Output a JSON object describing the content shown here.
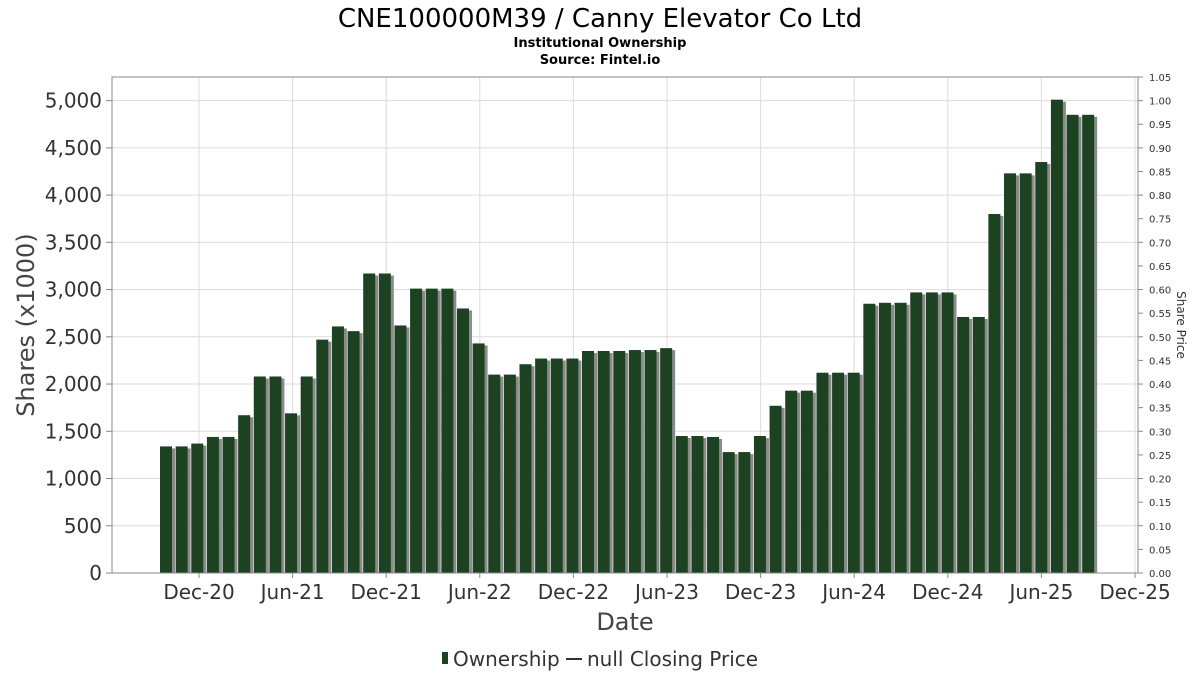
{
  "chart_data": {
    "type": "bar",
    "title": "CNE100000M39 / Canny Elevator Co Ltd",
    "subtitle": "Institutional Ownership",
    "source": "Source: Fintel.io",
    "xlabel": "Date",
    "ylabel": "Shares (x1000)",
    "y2label": "Share Price",
    "ylim": [
      0,
      5250
    ],
    "y2lim": [
      0,
      1.05
    ],
    "yticks": [
      "0",
      "500",
      "1,000",
      "1,500",
      "2,000",
      "2,500",
      "3,000",
      "3,500",
      "4,000",
      "4,500",
      "5,000"
    ],
    "y2ticks": [
      "0.00",
      "0.05",
      "0.10",
      "0.15",
      "0.20",
      "0.25",
      "0.30",
      "0.35",
      "0.40",
      "0.45",
      "0.50",
      "0.55",
      "0.60",
      "0.65",
      "0.70",
      "0.75",
      "0.80",
      "0.85",
      "0.90",
      "0.95",
      "1.00",
      "1.05"
    ],
    "xticks": [
      "Dec-20",
      "Jun-21",
      "Dec-21",
      "Jun-22",
      "Dec-22",
      "Jun-23",
      "Dec-23",
      "Jun-24",
      "Dec-24",
      "Jun-25",
      "Dec-25"
    ],
    "legend": [
      "Ownership",
      "null Closing Price"
    ],
    "colors": {
      "bar": "#1c4222",
      "shadow": "#8a8a8a",
      "line": "#333333"
    },
    "grid": true,
    "series": [
      {
        "name": "Ownership",
        "values": [
          1340,
          1340,
          1370,
          1440,
          1440,
          1670,
          2080,
          2080,
          1690,
          2080,
          2470,
          2610,
          2560,
          3170,
          3170,
          2620,
          3010,
          3010,
          3010,
          2800,
          2430,
          2100,
          2100,
          2210,
          2270,
          2270,
          2270,
          2350,
          2350,
          2350,
          2360,
          2360,
          2380,
          1450,
          1450,
          1440,
          1280,
          1280,
          1450,
          1770,
          1930,
          1930,
          2120,
          2120,
          2120,
          2850,
          2860,
          2860,
          2970,
          2970,
          2970,
          2710,
          2710,
          3800,
          4230,
          4230,
          4350,
          5010,
          4850,
          4850
        ]
      }
    ]
  }
}
